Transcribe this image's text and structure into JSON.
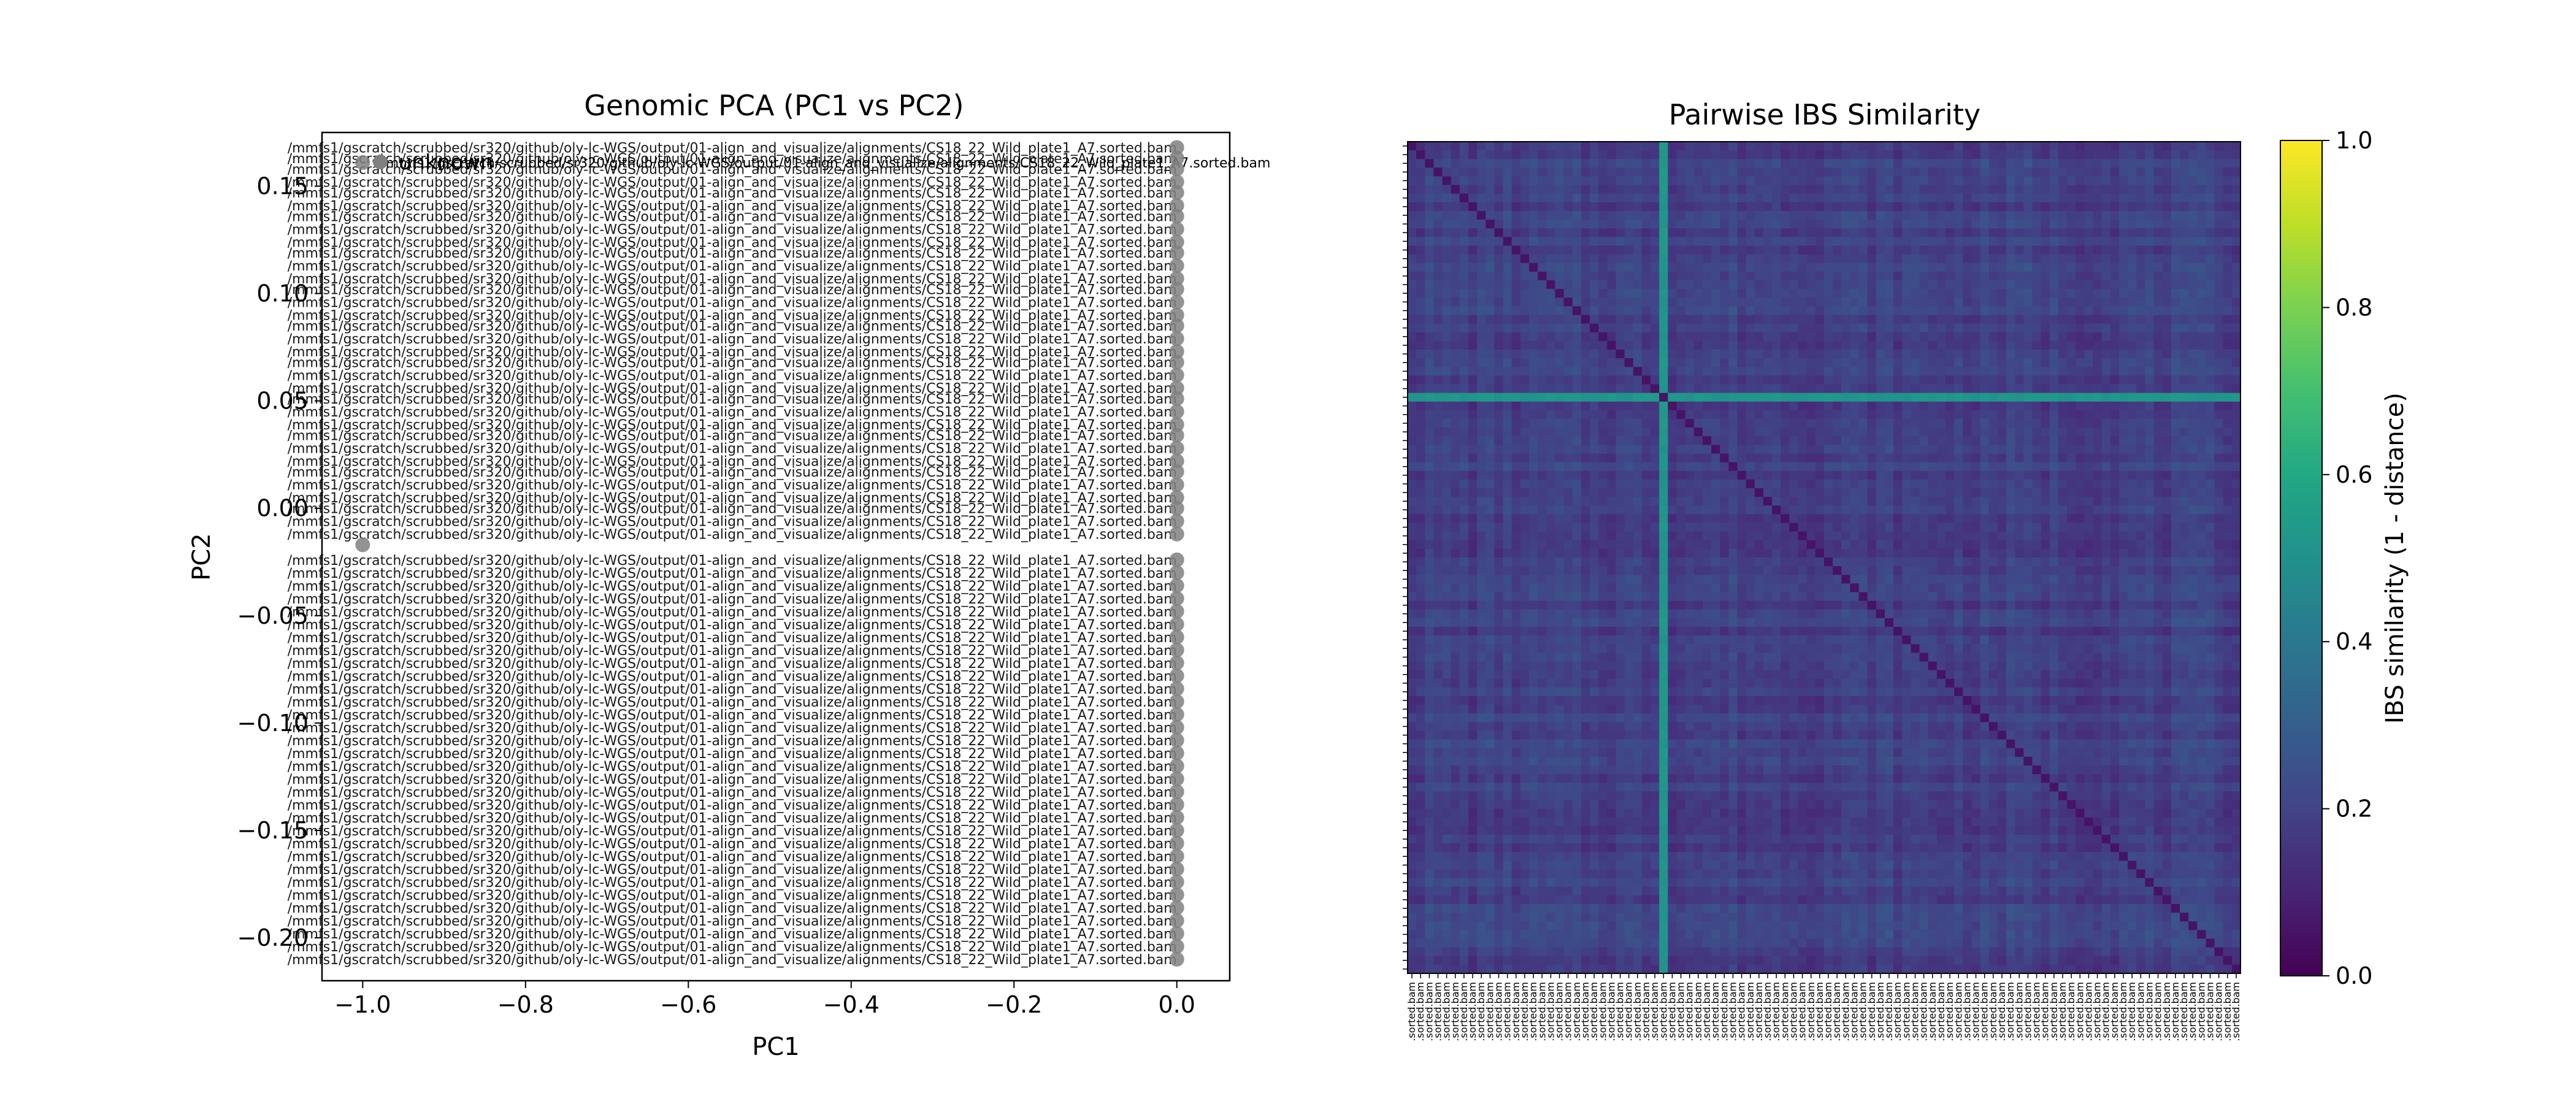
{
  "chart_data": [
    {
      "type": "scatter",
      "title": "Genomic PCA (PC1 vs PC2)",
      "xlabel": "PC1",
      "ylabel": "PC2",
      "xlim": [
        -1.05,
        0.065
      ],
      "ylim": [
        -0.22,
        0.175
      ],
      "xticks": [
        -1.0,
        -0.8,
        -0.6,
        -0.4,
        -0.2,
        0.0
      ],
      "xtick_labels": [
        "−1.0",
        "−0.8",
        "−0.6",
        "−0.4",
        "−0.2",
        "0.0"
      ],
      "yticks": [
        0.15,
        0.1,
        0.05,
        0.0,
        -0.05,
        -0.1,
        -0.15,
        -0.2
      ],
      "ytick_labels": [
        "0.15",
        "0.10",
        "0.05",
        "0.00",
        "−0.05",
        "−0.10",
        "−0.15",
        "−0.20"
      ],
      "legend": [
        "unknown"
      ],
      "legend_placement": "top-left",
      "grid": false,
      "point_color": "#808080",
      "point_label_prefix": "/mmfs1/gscratch/scrubbed/sr320/github/oly-lc-WGS/output/01-align_and_visualize/alignments/",
      "points": [
        {
          "x": -1.0,
          "y": 0.161,
          "label": "CS18_22_Wild_plate1_A7.sorted.bam"
        },
        {
          "x": -1.0,
          "y": -0.017,
          "label": ""
        },
        {
          "x": 0.0,
          "y": 0.168
        },
        {
          "x": 0.0,
          "y": 0.163
        },
        {
          "x": 0.0,
          "y": 0.158
        },
        {
          "x": 0.0,
          "y": 0.152
        },
        {
          "x": 0.0,
          "y": 0.147
        },
        {
          "x": 0.0,
          "y": 0.141
        },
        {
          "x": 0.0,
          "y": 0.136
        },
        {
          "x": 0.0,
          "y": 0.13
        },
        {
          "x": 0.0,
          "y": 0.124
        },
        {
          "x": 0.0,
          "y": 0.119
        },
        {
          "x": 0.0,
          "y": 0.113
        },
        {
          "x": 0.0,
          "y": 0.107
        },
        {
          "x": 0.0,
          "y": 0.102
        },
        {
          "x": 0.0,
          "y": 0.096
        },
        {
          "x": 0.0,
          "y": 0.09
        },
        {
          "x": 0.0,
          "y": 0.085
        },
        {
          "x": 0.0,
          "y": 0.079
        },
        {
          "x": 0.0,
          "y": 0.073
        },
        {
          "x": 0.0,
          "y": 0.068
        },
        {
          "x": 0.0,
          "y": 0.062
        },
        {
          "x": 0.0,
          "y": 0.056
        },
        {
          "x": 0.0,
          "y": 0.051
        },
        {
          "x": 0.0,
          "y": 0.045
        },
        {
          "x": 0.0,
          "y": 0.039
        },
        {
          "x": 0.0,
          "y": 0.034
        },
        {
          "x": 0.0,
          "y": 0.028
        },
        {
          "x": 0.0,
          "y": 0.022
        },
        {
          "x": 0.0,
          "y": 0.017
        },
        {
          "x": 0.0,
          "y": 0.011
        },
        {
          "x": 0.0,
          "y": 0.005
        },
        {
          "x": 0.0,
          "y": 0.0
        },
        {
          "x": 0.0,
          "y": -0.006
        },
        {
          "x": 0.0,
          "y": -0.012
        },
        {
          "x": 0.0,
          "y": -0.024
        },
        {
          "x": 0.0,
          "y": -0.03
        },
        {
          "x": 0.0,
          "y": -0.036
        },
        {
          "x": 0.0,
          "y": -0.042
        },
        {
          "x": 0.0,
          "y": -0.048
        },
        {
          "x": 0.0,
          "y": -0.054
        },
        {
          "x": 0.0,
          "y": -0.06
        },
        {
          "x": 0.0,
          "y": -0.066
        },
        {
          "x": 0.0,
          "y": -0.072
        },
        {
          "x": 0.0,
          "y": -0.078
        },
        {
          "x": 0.0,
          "y": -0.084
        },
        {
          "x": 0.0,
          "y": -0.09
        },
        {
          "x": 0.0,
          "y": -0.096
        },
        {
          "x": 0.0,
          "y": -0.102
        },
        {
          "x": 0.0,
          "y": -0.108
        },
        {
          "x": 0.0,
          "y": -0.114
        },
        {
          "x": 0.0,
          "y": -0.12
        },
        {
          "x": 0.0,
          "y": -0.126
        },
        {
          "x": 0.0,
          "y": -0.132
        },
        {
          "x": 0.0,
          "y": -0.138
        },
        {
          "x": 0.0,
          "y": -0.144
        },
        {
          "x": 0.0,
          "y": -0.15
        },
        {
          "x": 0.0,
          "y": -0.156
        },
        {
          "x": 0.0,
          "y": -0.162
        },
        {
          "x": 0.0,
          "y": -0.168
        },
        {
          "x": 0.0,
          "y": -0.174
        },
        {
          "x": 0.0,
          "y": -0.18
        },
        {
          "x": 0.0,
          "y": -0.186
        },
        {
          "x": 0.0,
          "y": -0.192
        },
        {
          "x": 0.0,
          "y": -0.198
        },
        {
          "x": 0.0,
          "y": -0.204
        },
        {
          "x": 0.0,
          "y": -0.21
        }
      ]
    },
    {
      "type": "heatmap",
      "title": "Pairwise IBS Similarity",
      "n_samples": 96,
      "highlight_sample_index": 29,
      "colorbar_label": "IBS similarity (1 - distance)",
      "colorbar_ticks": [
        "0.0",
        "0.2",
        "0.4",
        "0.6",
        "0.8",
        "1.0"
      ],
      "value_range": [
        0.0,
        1.0
      ],
      "colormap": "viridis",
      "typical_offdiagonal_value": 0.19,
      "highlight_row_value": 0.52,
      "diagonal_value": 0.05,
      "row_label_text": "/mmfs1/gscratch/scrubbed/sr320/github/oly-lc-WGS/output/01-align_and_visualize/alignments/CS18_22_Wild_plate1_A7.sorted.bam",
      "col_label_suffix": ".sorted.bam"
    }
  ]
}
